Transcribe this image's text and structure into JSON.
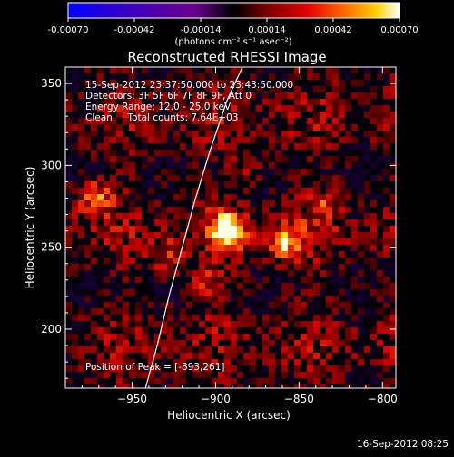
{
  "colorbar": {
    "tick_labels": [
      "-0.00070",
      "-0.00042",
      "-0.00014",
      "0.00014",
      "0.00042",
      "0.00070"
    ],
    "unit_label": "(photons cm⁻² s⁻¹ asec⁻²)",
    "colors": [
      "#0000ff",
      "#3a00b8",
      "#5a0090",
      "#000000",
      "#7a0000",
      "#e00000",
      "#ff6a00",
      "#ffd200",
      "#ffffff"
    ]
  },
  "image_info": {
    "time_range": "15-Sep-2012 23:37:50.000 to 23:43:50.000",
    "detectors": "Detectors: 3F 5F 6F 7F 8F 9F, Att 0",
    "energy_range": "Energy Range: 12.0 - 25.0 keV",
    "clean_counts": "Clean     Total counts: 7.64E+03",
    "peak_position": "Position of Peak = [-893,261]"
  },
  "footer": {
    "timestamp": "16-Sep-2012 08:25"
  },
  "chart_data": {
    "type": "heatmap",
    "title": "Reconstructed RHESSI Image",
    "xlabel": "Heliocentric X (arcsec)",
    "ylabel": "Heliocentric Y (arcsec)",
    "xlim": [
      -990,
      -792
    ],
    "ylim": [
      164,
      360
    ],
    "xticks": [
      -950,
      -900,
      -850,
      -800
    ],
    "yticks": [
      200,
      250,
      300,
      350
    ],
    "peak": {
      "x": -893,
      "y": 261
    },
    "sources": [
      {
        "x": -893,
        "y": 260,
        "strength": 1.0
      },
      {
        "x": -858,
        "y": 253,
        "strength": 0.65
      },
      {
        "x": -972,
        "y": 280,
        "strength": 0.55
      },
      {
        "x": -930,
        "y": 245,
        "strength": 0.35
      },
      {
        "x": -905,
        "y": 228,
        "strength": 0.3
      },
      {
        "x": -835,
        "y": 275,
        "strength": 0.3
      },
      {
        "x": -880,
        "y": 300,
        "strength": 0.25
      }
    ],
    "limb_curve": {
      "x": [
        -942,
        -935,
        -928,
        -920,
        -912,
        -903,
        -893,
        -883
      ],
      "y": [
        164,
        190,
        220,
        250,
        280,
        310,
        340,
        362
      ]
    }
  }
}
